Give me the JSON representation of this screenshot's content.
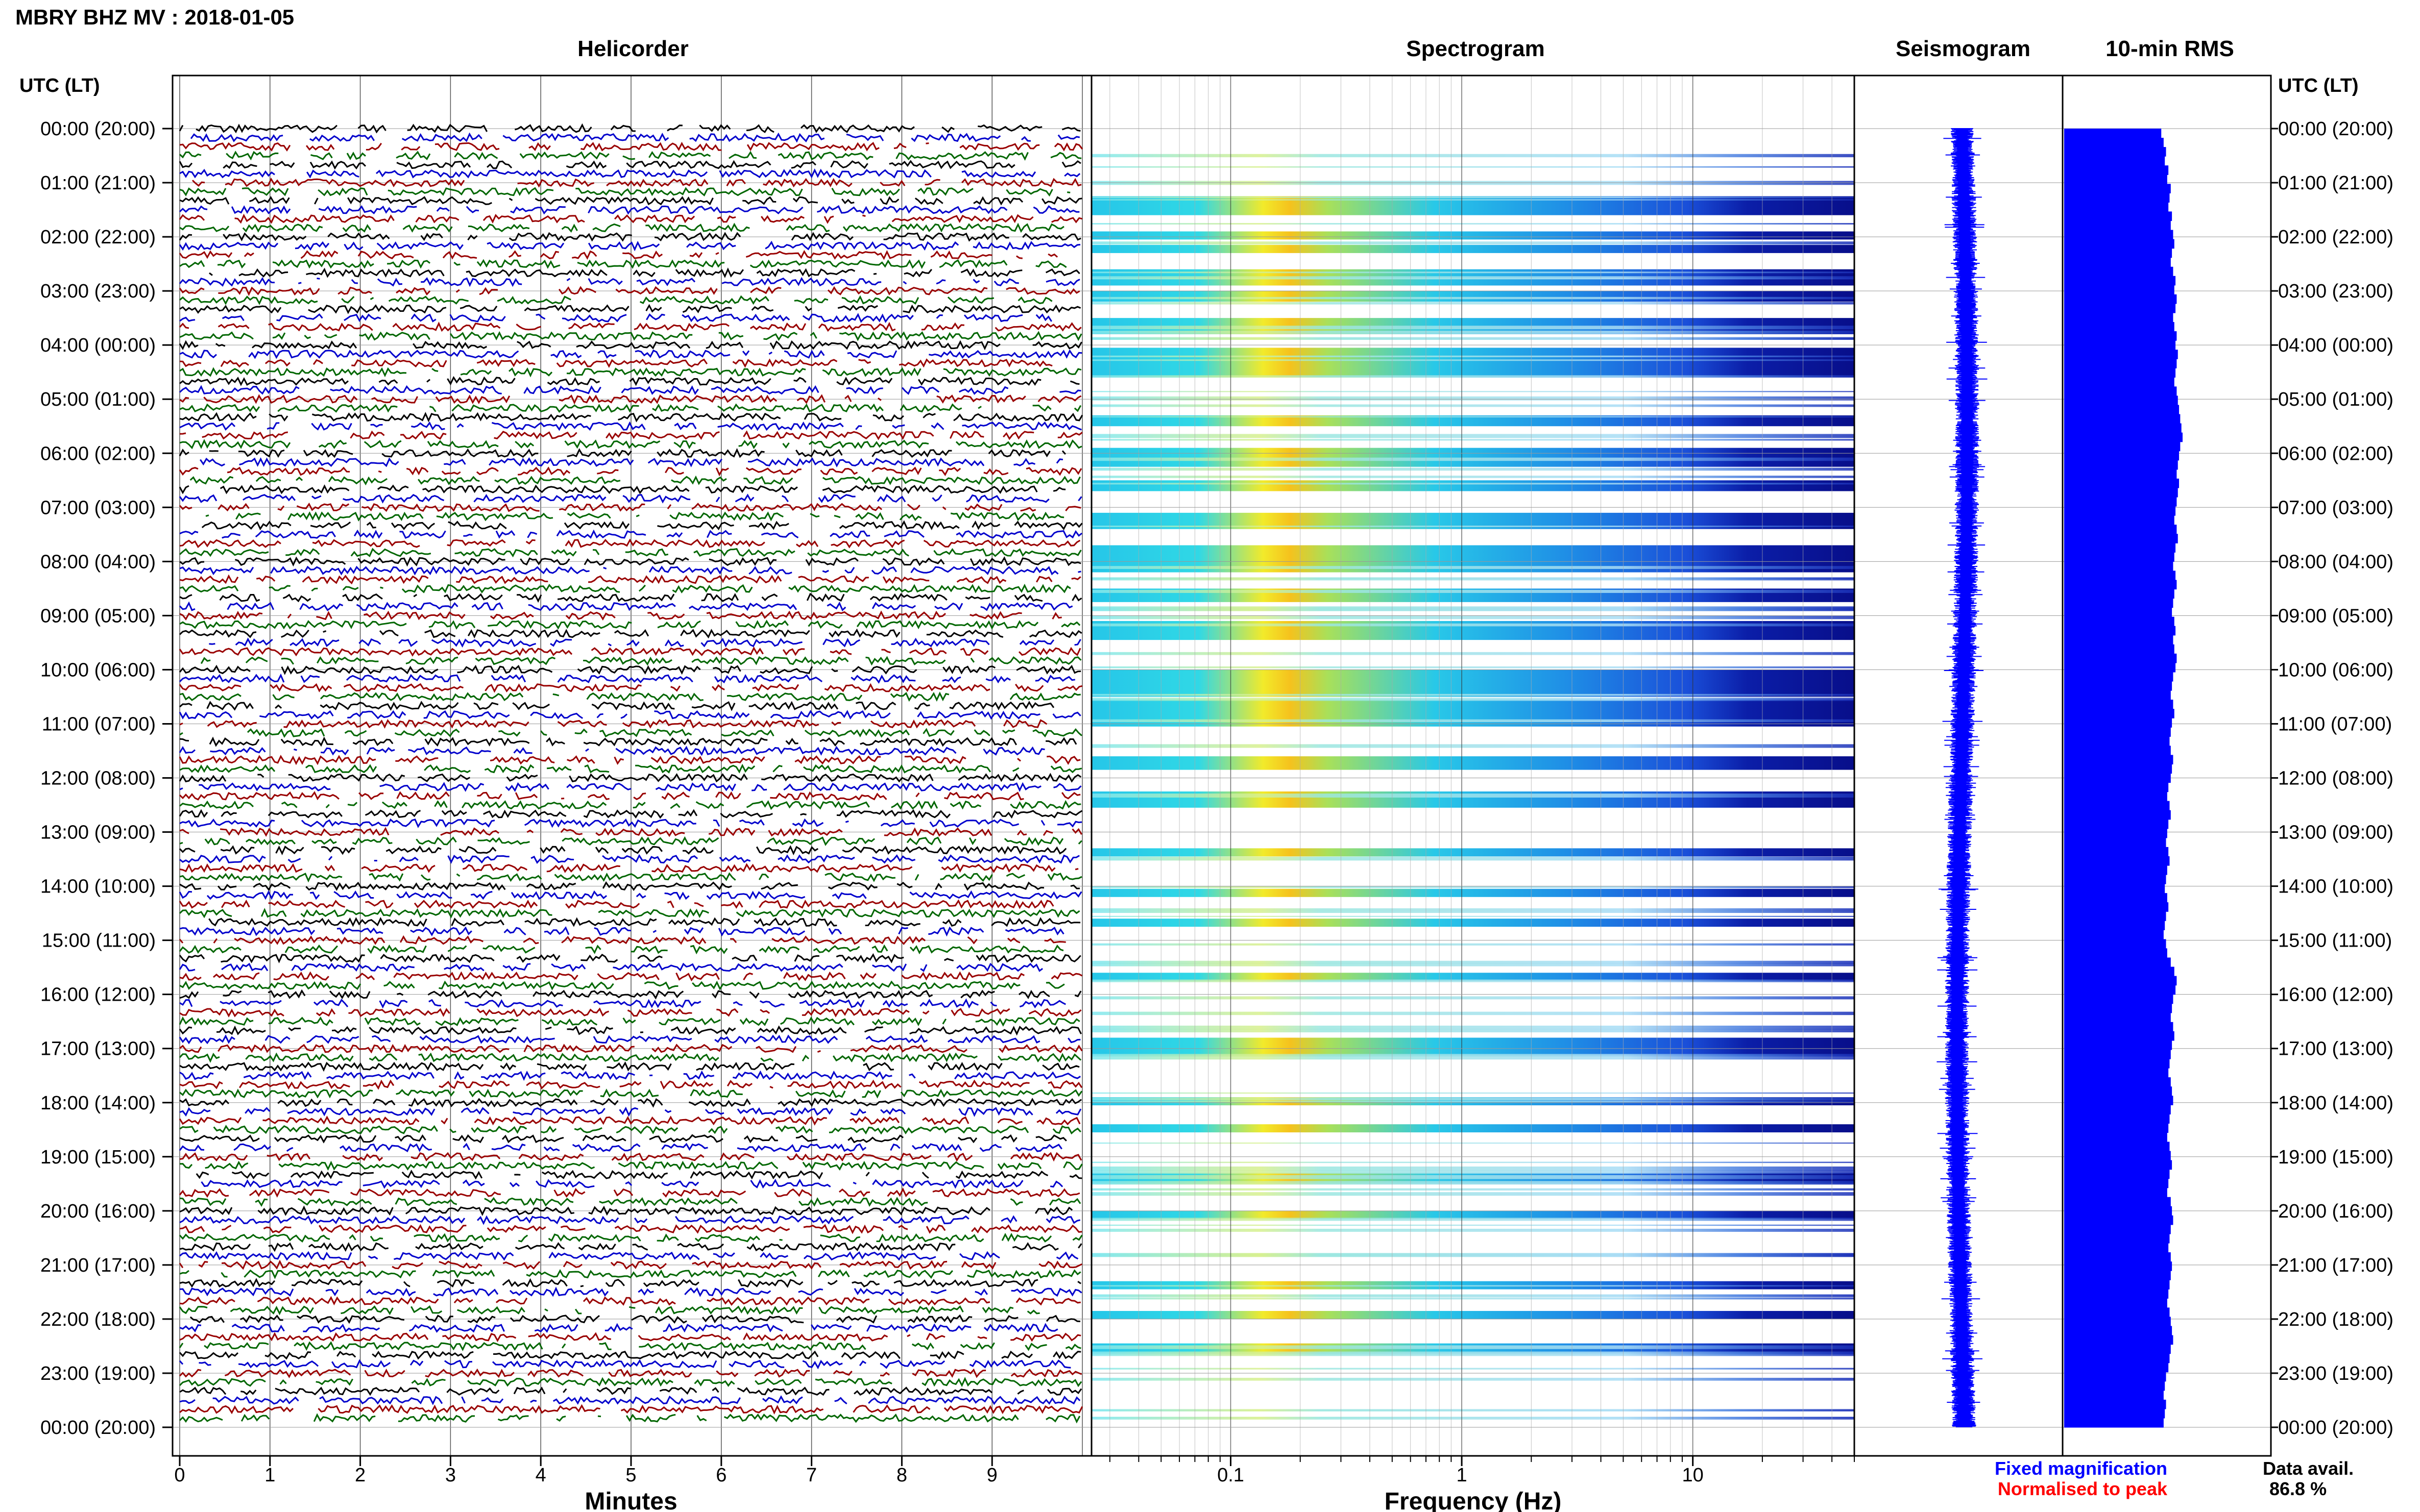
{
  "chart_data": {
    "type": "heatmap",
    "title": "MBRY BHZ MV : 2018-01-05",
    "panels": {
      "helicorder": "Helicorder",
      "spectrogram": "Spectrogram",
      "seismogram": "Seismogram",
      "rms": "10-min RMS"
    },
    "ylabel": "UTC (LT)",
    "ylabel_right": "UTC (LT)",
    "hour_labels": [
      "00:00 (20:00)",
      "01:00 (21:00)",
      "02:00 (22:00)",
      "03:00 (23:00)",
      "04:00 (00:00)",
      "05:00 (01:00)",
      "06:00 (02:00)",
      "07:00 (03:00)",
      "08:00 (04:00)",
      "09:00 (05:00)",
      "10:00 (06:00)",
      "11:00 (07:00)",
      "12:00 (08:00)",
      "13:00 (09:00)",
      "14:00 (10:00)",
      "15:00 (11:00)",
      "16:00 (12:00)",
      "17:00 (13:00)",
      "18:00 (14:00)",
      "19:00 (15:00)",
      "20:00 (16:00)",
      "21:00 (17:00)",
      "22:00 (18:00)",
      "23:00 (19:00)",
      "00:00 (20:00)"
    ],
    "helicorder_xlabel": "Minutes",
    "helicorder_xticks": [
      "0",
      "1",
      "2",
      "3",
      "4",
      "5",
      "6",
      "7",
      "8",
      "9"
    ],
    "helicorder_xlim": [
      0,
      10
    ],
    "trace_colors": [
      "#000000",
      "#0000cc",
      "#990000",
      "#006600"
    ],
    "spectrogram_xlabel": "Frequency (Hz)",
    "spectrogram_xticks": [
      "0.1",
      "1",
      "10"
    ],
    "spectrogram_xlim": [
      0.025,
      50
    ],
    "spectrogram_xscale": "log",
    "spectrogram_peak_hz": 0.2,
    "rms_values": [
      0.82,
      0.84,
      0.86,
      0.85,
      0.88,
      0.87,
      0.9,
      0.89,
      0.88,
      0.91,
      0.9,
      0.92,
      0.93,
      0.91,
      0.9,
      0.92,
      0.94,
      0.93,
      0.95,
      0.94,
      0.92,
      0.93,
      0.95,
      0.94,
      0.96,
      0.95,
      0.94,
      0.93,
      0.95,
      0.96,
      0.97,
      0.98,
      0.99,
      1.0,
      0.98,
      0.97,
      0.96,
      0.95,
      0.97,
      0.96,
      0.95,
      0.94,
      0.93,
      0.95,
      0.96,
      0.94,
      0.93,
      0.92,
      0.94,
      0.95,
      0.93,
      0.92,
      0.91,
      0.93,
      0.94,
      0.92,
      0.93,
      0.95,
      0.94,
      0.92,
      0.91,
      0.9,
      0.92,
      0.93,
      0.91,
      0.9,
      0.89,
      0.9,
      0.92,
      0.91,
      0.9,
      0.88,
      0.87,
      0.89,
      0.9,
      0.88,
      0.87,
      0.86,
      0.88,
      0.89,
      0.87,
      0.86,
      0.85,
      0.87,
      0.88,
      0.86,
      0.85,
      0.84,
      0.86,
      0.87,
      0.9,
      0.93,
      0.95,
      0.94,
      0.92,
      0.91,
      0.9,
      0.92,
      0.93,
      0.91,
      0.9,
      0.89,
      0.88,
      0.9,
      0.91,
      0.92,
      0.9,
      0.89,
      0.88,
      0.87,
      0.89,
      0.9,
      0.91,
      0.89,
      0.88,
      0.87,
      0.9,
      0.91,
      0.92,
      0.9,
      0.89,
      0.88,
      0.9,
      0.91,
      0.9,
      0.89,
      0.88,
      0.87,
      0.89,
      0.9,
      0.91,
      0.92,
      0.9,
      0.89,
      0.88,
      0.86,
      0.85,
      0.84,
      0.86,
      0.85,
      0.84
    ],
    "legend": [
      "Fixed magnification",
      "Normalised to peak"
    ],
    "legend_colors": [
      "#0000ff",
      "#ff0000"
    ],
    "data_avail_label": "Data avail.",
    "data_avail_value": "86.8 %"
  }
}
